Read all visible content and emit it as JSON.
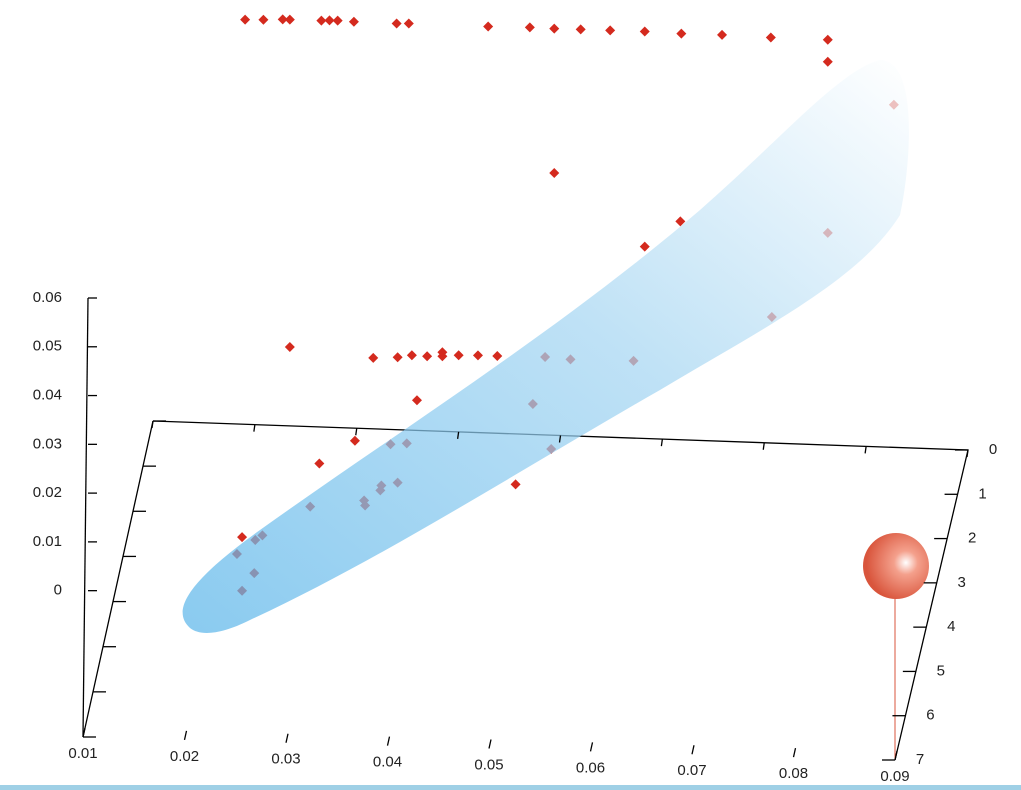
{
  "chart_data": {
    "type": "scatter3d",
    "color": "#d42a1e",
    "xlim": [
      0.01,
      0.09
    ],
    "ylim": [
      0,
      7
    ],
    "zlim": [
      -0.03,
      0.06
    ],
    "xticks": [
      0.01,
      0.02,
      0.03,
      0.04,
      0.05,
      0.06,
      0.07,
      0.08,
      0.09
    ],
    "yticks": [
      0,
      1,
      2,
      3,
      4,
      5,
      6,
      7
    ],
    "zticks": [
      0,
      0.01,
      0.02,
      0.03,
      0.04,
      0.05,
      0.06
    ],
    "x": [
      0.0225,
      0.0243,
      0.0262,
      0.0269,
      0.03,
      0.0308,
      0.0316,
      0.0332,
      0.0374,
      0.0386,
      0.0464,
      0.0505,
      0.0529,
      0.0555,
      0.0584,
      0.0618,
      0.0654,
      0.0694,
      0.0742,
      0.0798,
      0.0798,
      0.0863,
      0.0529,
      0.0653,
      0.0798,
      0.0618,
      0.0743,
      0.0269,
      0.0351,
      0.0375,
      0.0389,
      0.0404,
      0.0419,
      0.0419,
      0.0435,
      0.0454,
      0.0473,
      0.052,
      0.0545,
      0.0607,
      0.0508,
      0.0394,
      0.0333,
      0.0298,
      0.0368,
      0.0384,
      0.0526,
      0.0491,
      0.0375,
      0.0358,
      0.0359,
      0.0343,
      0.0342,
      0.0289,
      0.0222,
      0.0235,
      0.0242,
      0.0217,
      0.0234,
      0.0222
    ],
    "y": [
      3.5,
      3.5,
      3.5,
      3.5,
      3.5,
      3.5,
      3.5,
      3.5,
      3.5,
      3.5,
      3.5,
      3.5,
      3.5,
      3.5,
      3.5,
      3.5,
      3.5,
      3.5,
      3.5,
      3.5,
      3.5,
      3.5,
      3.5,
      3.5,
      3.5,
      3.5,
      3.5,
      3.5,
      3.5,
      3.5,
      3.5,
      3.5,
      3.5,
      3.5,
      3.5,
      3.5,
      3.5,
      3.5,
      3.5,
      3.5,
      3.5,
      3.5,
      3.5,
      3.5,
      3.5,
      3.5,
      3.5,
      3.5,
      3.5,
      3.5,
      3.5,
      3.5,
      3.5,
      3.5,
      3.5,
      3.5,
      3.5,
      3.5,
      3.5,
      3.5
    ],
    "z": [
      0.0855,
      0.0856,
      0.0858,
      0.0858,
      0.0858,
      0.0859,
      0.0859,
      0.0858,
      0.0857,
      0.0858,
      0.0857,
      0.0858,
      0.0857,
      0.0857,
      0.0857,
      0.0857,
      0.0855,
      0.0855,
      0.0853,
      0.0852,
      0.0807,
      0.0723,
      0.0561,
      0.047,
      0.0456,
      0.0416,
      0.028,
      0.0187,
      0.017,
      0.0173,
      0.0178,
      0.0177,
      0.0178,
      0.0186,
      0.0181,
      0.0182,
      0.0182,
      0.0183,
      0.018,
      0.0181,
      0.0086,
      0.0086,
      -0.0001,
      -0.005,
      -0.0006,
      -0.0003,
      -0.0005,
      -0.008,
      -0.0084,
      -0.0101,
      -0.0091,
      -0.0133,
      -0.0123,
      -0.0139,
      -0.0206,
      -0.0211,
      -0.0201,
      -0.0241,
      -0.0279,
      -0.0316
    ]
  }
}
